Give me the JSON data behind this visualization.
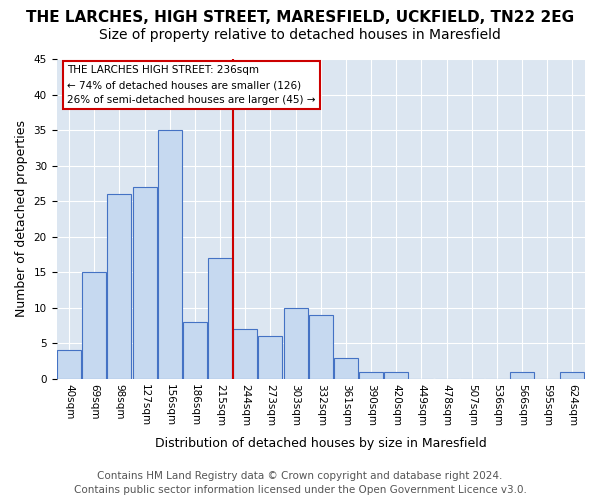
{
  "title": "THE LARCHES, HIGH STREET, MARESFIELD, UCKFIELD, TN22 2EG",
  "subtitle": "Size of property relative to detached houses in Maresfield",
  "xlabel": "Distribution of detached houses by size in Maresfield",
  "ylabel": "Number of detached properties",
  "bin_labels": [
    "40sqm",
    "69sqm",
    "98sqm",
    "127sqm",
    "156sqm",
    "186sqm",
    "215sqm",
    "244sqm",
    "273sqm",
    "303sqm",
    "332sqm",
    "361sqm",
    "390sqm",
    "420sqm",
    "449sqm",
    "478sqm",
    "507sqm",
    "536sqm",
    "566sqm",
    "595sqm",
    "624sqm"
  ],
  "bar_heights": [
    4,
    15,
    26,
    27,
    35,
    8,
    17,
    7,
    6,
    10,
    9,
    3,
    1,
    1,
    0,
    0,
    0,
    0,
    1,
    0,
    1
  ],
  "bar_color": "#c6d9f0",
  "bar_edge_color": "#4472c4",
  "grid_color": "#ffffff",
  "bg_color": "#dce6f1",
  "red_line_x": 6.5,
  "annotation_line1": "THE LARCHES HIGH STREET: 236sqm",
  "annotation_line2": "← 74% of detached houses are smaller (126)",
  "annotation_line3": "26% of semi-detached houses are larger (45) →",
  "annotation_box_color": "#ffffff",
  "annotation_border_color": "#cc0000",
  "footer_line1": "Contains HM Land Registry data © Crown copyright and database right 2024.",
  "footer_line2": "Contains public sector information licensed under the Open Government Licence v3.0.",
  "ylim": [
    0,
    45
  ],
  "yticks": [
    0,
    5,
    10,
    15,
    20,
    25,
    30,
    35,
    40,
    45
  ],
  "title_fontsize": 11,
  "subtitle_fontsize": 10,
  "xlabel_fontsize": 9,
  "ylabel_fontsize": 9,
  "tick_fontsize": 7.5,
  "footer_fontsize": 7.5,
  "annotation_fontsize": 7.5
}
